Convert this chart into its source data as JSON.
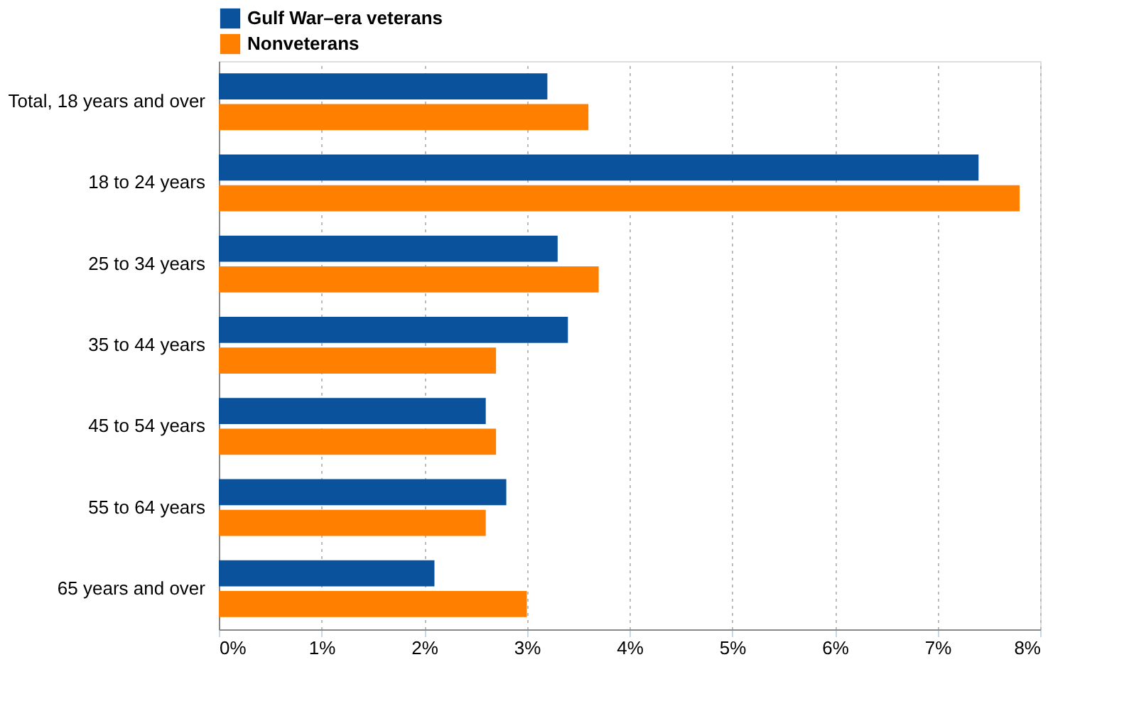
{
  "chart_data": {
    "type": "bar",
    "orientation": "horizontal",
    "categories": [
      "Total, 18 years and over",
      "18 to 24 years",
      "25 to 34 years",
      "35 to 44 years",
      "45 to 54 years",
      "55 to 64 years",
      "65 years and over"
    ],
    "series": [
      {
        "name": "Gulf War–era veterans",
        "color": "#0a529c",
        "values": [
          3.2,
          7.4,
          3.3,
          3.4,
          2.6,
          2.8,
          2.1
        ]
      },
      {
        "name": "Nonveterans",
        "color": "#ff7f00",
        "values": [
          3.6,
          7.8,
          3.7,
          2.7,
          2.7,
          2.6,
          3.0
        ]
      }
    ],
    "xlim": [
      0,
      8
    ],
    "xticks": [
      {
        "value": 0,
        "label": "0%"
      },
      {
        "value": 1,
        "label": "1%"
      },
      {
        "value": 2,
        "label": "2%"
      },
      {
        "value": 3,
        "label": "3%"
      },
      {
        "value": 4,
        "label": "4%"
      },
      {
        "value": 5,
        "label": "5%"
      },
      {
        "value": 6,
        "label": "6%"
      },
      {
        "value": 7,
        "label": "7%"
      },
      {
        "value": 8,
        "label": "8%"
      }
    ],
    "grid": "x",
    "legend": "top"
  }
}
